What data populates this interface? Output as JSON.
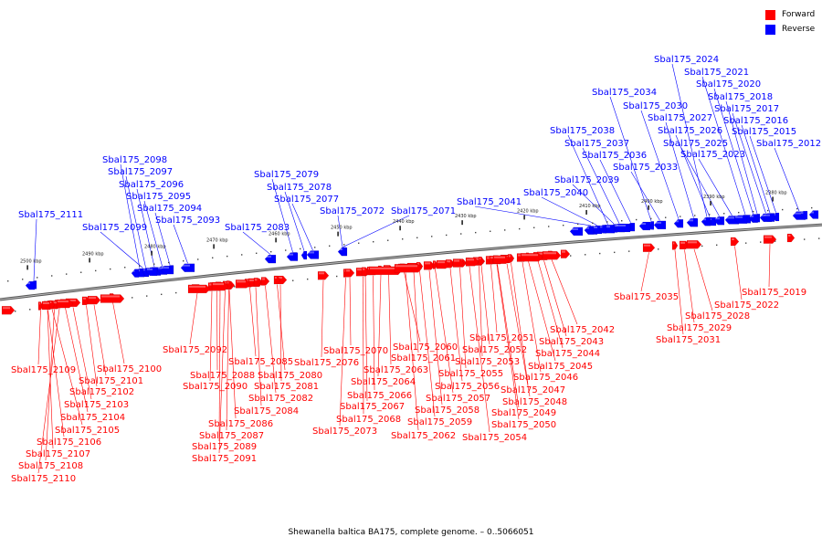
{
  "legend": {
    "forward_label": "Forward",
    "reverse_label": "Reverse",
    "forward_color": "#ff0000",
    "reverse_color": "#0000ff"
  },
  "caption": "Shewanella baltica BA175, complete genome. – 0..5066051",
  "axis_ticks": [
    {
      "label": "2500 kbp",
      "kbp": 2500
    },
    {
      "label": "2490 kbp",
      "kbp": 2490
    },
    {
      "label": "2480 kbp",
      "kbp": 2480
    },
    {
      "label": "2470 kbp",
      "kbp": 2470
    },
    {
      "label": "2460 kbp",
      "kbp": 2460
    },
    {
      "label": "2450 kbp",
      "kbp": 2450
    },
    {
      "label": "2440 kbp",
      "kbp": 2440
    },
    {
      "label": "2430 kbp",
      "kbp": 2430
    },
    {
      "label": "2420 kbp",
      "kbp": 2420
    },
    {
      "label": "2410 kbp",
      "kbp": 2410
    },
    {
      "label": "2400 kbp",
      "kbp": 2400
    },
    {
      "label": "2390 kbp",
      "kbp": 2390
    },
    {
      "label": "2380 kbp",
      "kbp": 2380
    }
  ],
  "reverse_genes": [
    "Sbal175_2111",
    "Sbal175_2099",
    "Sbal175_2098",
    "Sbal175_2097",
    "Sbal175_2096",
    "Sbal175_2095",
    "Sbal175_2094",
    "Sbal175_2093",
    "Sbal175_2083",
    "Sbal175_2079",
    "Sbal175_2078",
    "Sbal175_2077",
    "Sbal175_2072",
    "Sbal175_2071",
    "Sbal175_2041",
    "Sbal175_2040",
    "Sbal175_2039",
    "Sbal175_2038",
    "Sbal175_2037",
    "Sbal175_2036",
    "Sbal175_2034",
    "Sbal175_2033",
    "Sbal175_2030",
    "Sbal175_2027",
    "Sbal175_2026",
    "Sbal175_2025",
    "Sbal175_2024",
    "Sbal175_2023",
    "Sbal175_2021",
    "Sbal175_2020",
    "Sbal175_2018",
    "Sbal175_2017",
    "Sbal175_2016",
    "Sbal175_2015",
    "Sbal175_2012"
  ],
  "forward_genes": [
    "Sbal175_2109",
    "Sbal175_2110",
    "Sbal175_2108",
    "Sbal175_2107",
    "Sbal175_2106",
    "Sbal175_2105",
    "Sbal175_2104",
    "Sbal175_2103",
    "Sbal175_2102",
    "Sbal175_2101",
    "Sbal175_2100",
    "Sbal175_2092",
    "Sbal175_2091",
    "Sbal175_2089",
    "Sbal175_2088",
    "Sbal175_2090",
    "Sbal175_2087",
    "Sbal175_2086",
    "Sbal175_2085",
    "Sbal175_2084",
    "Sbal175_2082",
    "Sbal175_2081",
    "Sbal175_2080",
    "Sbal175_2076",
    "Sbal175_2073",
    "Sbal175_2070",
    "Sbal175_2068",
    "Sbal175_2067",
    "Sbal175_2066",
    "Sbal175_2064",
    "Sbal175_2063",
    "Sbal175_2062",
    "Sbal175_2060",
    "Sbal175_2061",
    "Sbal175_2059",
    "Sbal175_2058",
    "Sbal175_2057",
    "Sbal175_2056",
    "Sbal175_2055",
    "Sbal175_2054",
    "Sbal175_2053",
    "Sbal175_2052",
    "Sbal175_2051",
    "Sbal175_2050",
    "Sbal175_2049",
    "Sbal175_2048",
    "Sbal175_2047",
    "Sbal175_2046",
    "Sbal175_2045",
    "Sbal175_2044",
    "Sbal175_2043",
    "Sbal175_2042",
    "Sbal175_2035",
    "Sbal175_2031",
    "Sbal175_2029",
    "Sbal175_2028",
    "Sbal175_2022",
    "Sbal175_2019"
  ]
}
